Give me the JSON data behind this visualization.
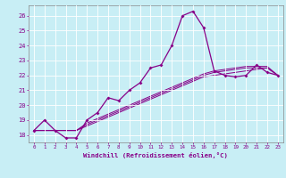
{
  "xlabel": "Windchill (Refroidissement éolien,°C)",
  "background_color": "#c8eef5",
  "line_color": "#880088",
  "xlim": [
    -0.5,
    23.5
  ],
  "ylim": [
    17.5,
    26.7
  ],
  "yticks": [
    18,
    19,
    20,
    21,
    22,
    23,
    24,
    25,
    26
  ],
  "xticks": [
    0,
    1,
    2,
    3,
    4,
    5,
    6,
    7,
    8,
    9,
    10,
    11,
    12,
    13,
    14,
    15,
    16,
    17,
    18,
    19,
    20,
    21,
    22,
    23
  ],
  "series": [
    [
      18.3,
      19.0,
      18.3,
      17.8,
      17.8,
      19.0,
      19.5,
      20.5,
      20.3,
      21.0,
      21.5,
      22.5,
      22.7,
      24.0,
      26.0,
      26.3,
      25.2,
      22.3,
      22.0,
      21.9,
      22.0,
      22.7,
      22.2,
      22.0
    ],
    [
      18.3,
      18.3,
      18.3,
      18.3,
      18.3,
      18.6,
      18.9,
      19.2,
      19.5,
      19.8,
      20.1,
      20.4,
      20.7,
      21.0,
      21.3,
      21.6,
      21.9,
      22.0,
      22.1,
      22.2,
      22.3,
      22.4,
      22.5,
      22.0
    ],
    [
      18.3,
      18.3,
      18.3,
      18.3,
      18.3,
      18.7,
      19.0,
      19.3,
      19.6,
      19.9,
      20.2,
      20.5,
      20.8,
      21.1,
      21.4,
      21.7,
      22.0,
      22.2,
      22.3,
      22.4,
      22.5,
      22.5,
      22.5,
      22.0
    ],
    [
      18.3,
      18.3,
      18.3,
      18.3,
      18.3,
      18.8,
      19.1,
      19.4,
      19.7,
      20.0,
      20.3,
      20.6,
      20.9,
      21.2,
      21.5,
      21.8,
      22.1,
      22.3,
      22.4,
      22.5,
      22.6,
      22.6,
      22.6,
      22.0
    ]
  ]
}
